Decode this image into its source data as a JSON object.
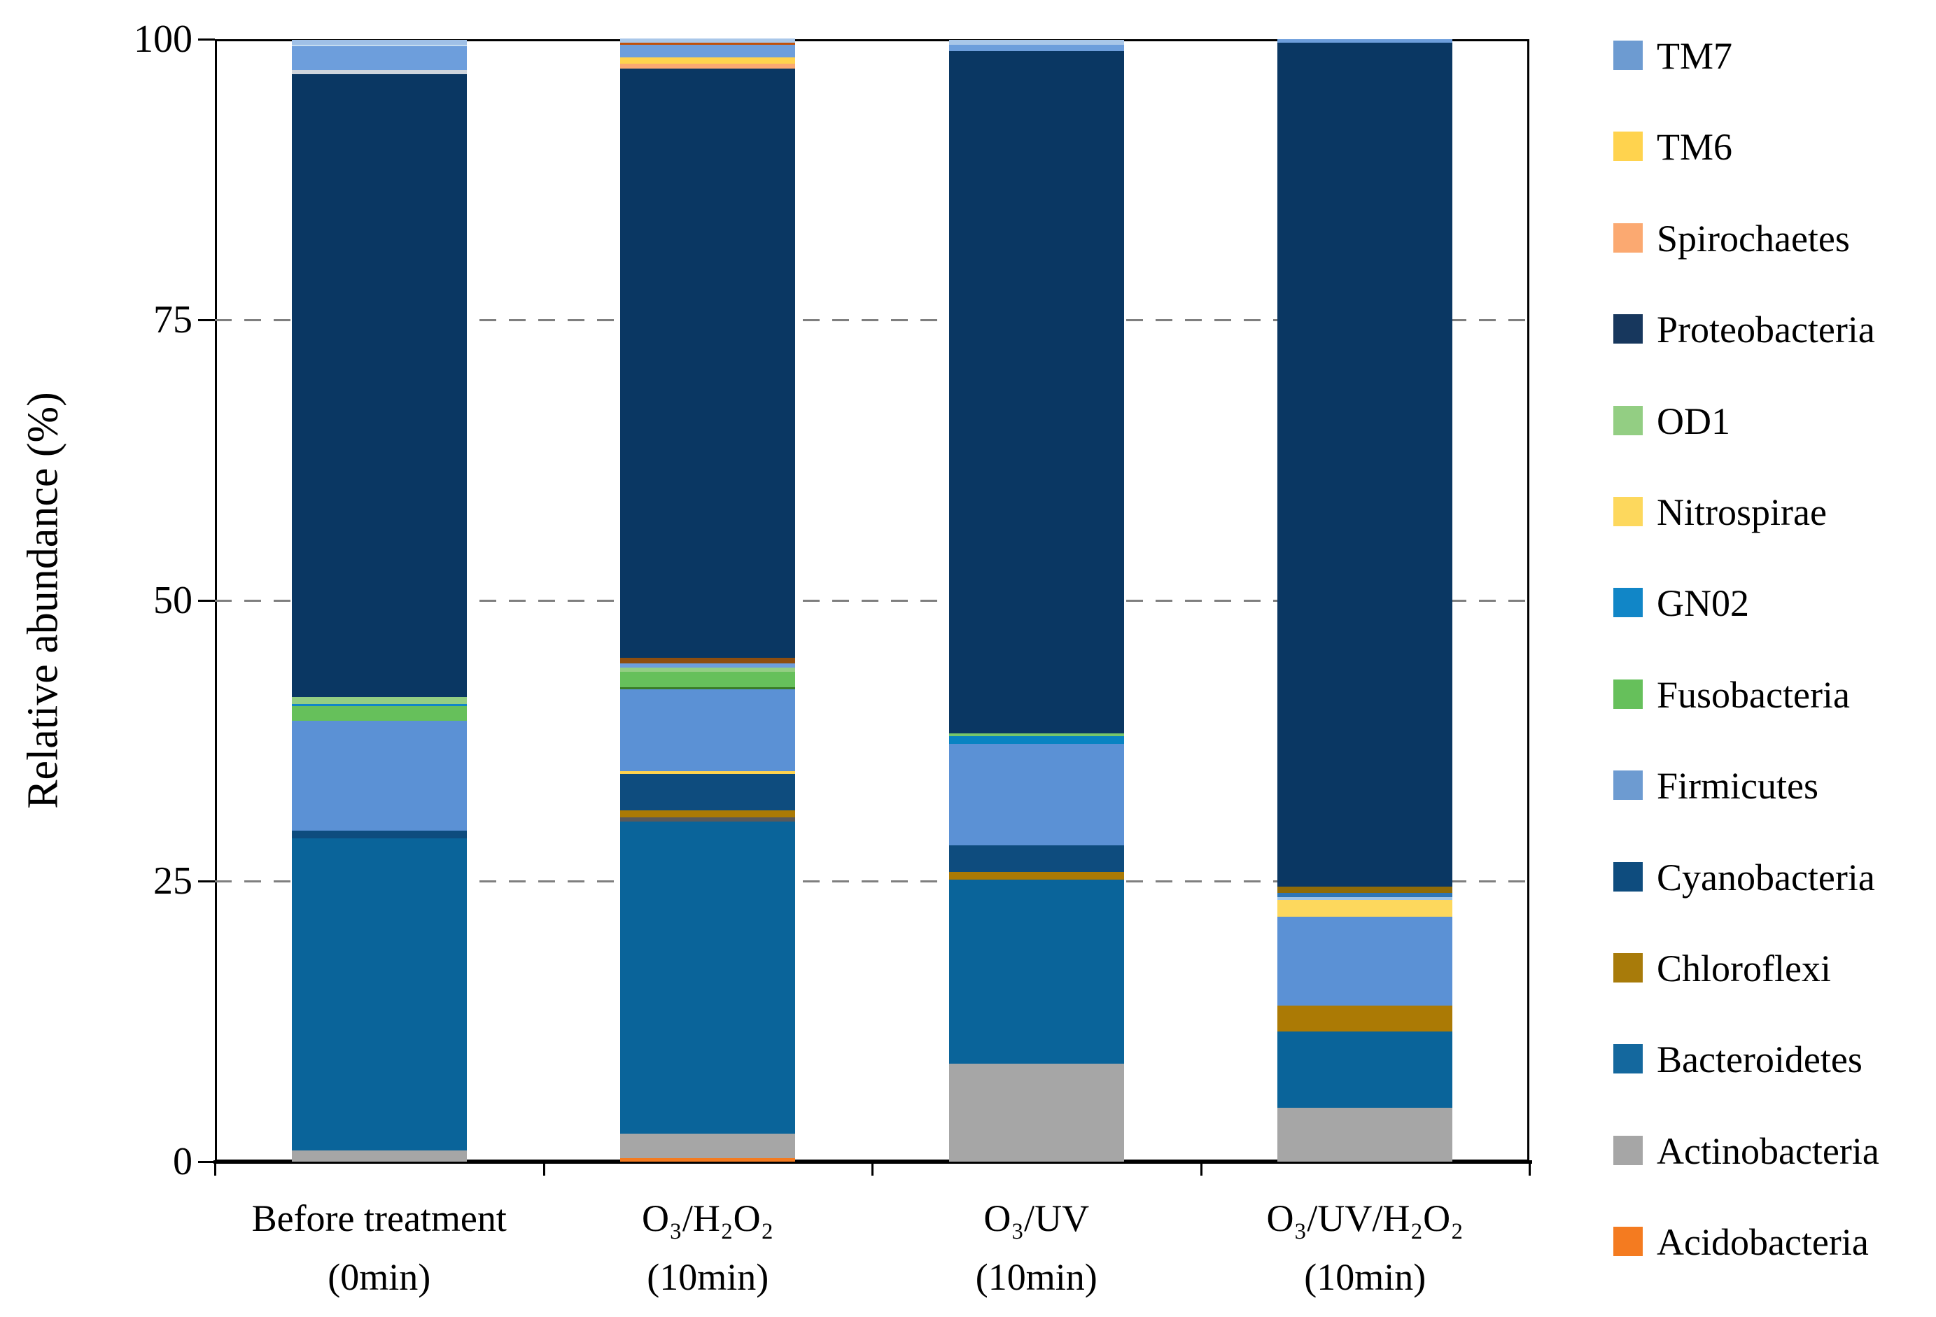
{
  "figure": {
    "background": "#FFFFFF"
  },
  "chart_data": {
    "type": "bar",
    "stacked": true,
    "title": "",
    "xlabel": "",
    "ylabel": "Relative abundance (%)",
    "ylim": [
      0,
      100
    ],
    "yticks": [
      0,
      25,
      50,
      75,
      100
    ],
    "gridlines": {
      "style": "dashed",
      "color": "#7F7F7F",
      "at": [
        25,
        50,
        75
      ]
    },
    "legend_position": "right",
    "categories": [
      {
        "line1": "Before treatment",
        "line2": "(0min)"
      },
      {
        "line1": "O₃/H₂O₂",
        "line2": "(10min)"
      },
      {
        "line1": "O₃/UV",
        "line2": "(10min)"
      },
      {
        "line1": "O₃/UV/H₂O₂",
        "line2": "(10min)"
      }
    ],
    "legend": [
      {
        "label": "TM7",
        "color": "#6D9BD1"
      },
      {
        "label": "TM6",
        "color": "#FFD34E"
      },
      {
        "label": "Spirochaetes",
        "color": "#FBA971"
      },
      {
        "label": "Proteobacteria",
        "color": "#17375D"
      },
      {
        "label": "OD1",
        "color": "#93CE83"
      },
      {
        "label": "Nitrospirae",
        "color": "#FDD85D"
      },
      {
        "label": "GN02",
        "color": "#1186C7"
      },
      {
        "label": "Fusobacteria",
        "color": "#66C05B"
      },
      {
        "label": "Firmicutes",
        "color": "#6D9BD1"
      },
      {
        "label": "Cyanobacteria",
        "color": "#0E4C7E"
      },
      {
        "label": "Chloroflexi",
        "color": "#A87B0A"
      },
      {
        "label": "Bacteroidetes",
        "color": "#14689E"
      },
      {
        "label": "Actinobacteria",
        "color": "#A6A6A6"
      },
      {
        "label": "Acidobacteria",
        "color": "#F47B20"
      }
    ],
    "series": [
      {
        "name": "TM7",
        "values": [
          2.7,
          1.5,
          1.0,
          0.3
        ]
      },
      {
        "name": "TM6",
        "values": [
          0.15,
          0.56,
          0,
          0
        ]
      },
      {
        "name": "Spirochaetes",
        "values": [
          0.2,
          0.44,
          0,
          0
        ]
      },
      {
        "name": "Proteobacteria",
        "values": [
          55.5,
          52.5,
          60.8,
          75.2
        ]
      },
      {
        "name": "OD1",
        "values": [
          0.6,
          0.38,
          0,
          0
        ]
      },
      {
        "name": "Nitrospirae",
        "values": [
          0,
          0.27,
          0,
          1.5
        ]
      },
      {
        "name": "GN02",
        "values": [
          0.2,
          0,
          0.7,
          0
        ]
      },
      {
        "name": "Fusobacteria",
        "values": [
          1.3,
          1.55,
          0.25,
          0
        ]
      },
      {
        "name": "Firmicutes",
        "values": [
          9.8,
          7.3,
          9.0,
          7.9
        ]
      },
      {
        "name": "Cyanobacteria",
        "values": [
          0.7,
          3.2,
          2.4,
          0
        ]
      },
      {
        "name": "Chloroflexi",
        "values": [
          0,
          0.65,
          0.7,
          2.3
        ]
      },
      {
        "name": "Bacteroidetes",
        "values": [
          27.8,
          27.8,
          16.4,
          6.8
        ]
      },
      {
        "name": "Actinobacteria",
        "values": [
          1.0,
          2.2,
          8.7,
          4.8
        ]
      },
      {
        "name": "Acidobacteria",
        "values": [
          0,
          0.3,
          0,
          0
        ]
      }
    ],
    "bars": [
      {
        "category": "Before treatment (0min)",
        "segments": [
          {
            "phylum": "Actinobacteria",
            "color": "#A6A6A6",
            "value": 1.0
          },
          {
            "phylum": "Bacteroidetes",
            "color": "#0A649A",
            "value": 27.8
          },
          {
            "phylum": "Cyanobacteria",
            "color": "#0E4C7E",
            "value": 0.7
          },
          {
            "phylum": "Firmicutes",
            "color": "#5B91D5",
            "value": 9.8
          },
          {
            "phylum": "Fusobacteria",
            "color": "#66C05B",
            "value": 1.3
          },
          {
            "phylum": "GN02",
            "color": "#1186C7",
            "value": 0.2
          },
          {
            "phylum": "OD1",
            "color": "#93CE83",
            "value": 0.6
          },
          {
            "phylum": "Proteobacteria",
            "color": "#0A3763",
            "value": 55.5
          },
          {
            "phylum": "TM6/Spirochaetes trace",
            "color": "#CFD5DD",
            "value": 0.35
          },
          {
            "phylum": "TM7",
            "color": "#6D9EDC",
            "value": 2.1
          },
          {
            "phylum": "unlabeled light sliver",
            "color": "#C5DCF0",
            "value": 0.15
          },
          {
            "phylum": "unlabeled pale sliver",
            "color": "#9FC0E7",
            "value": 0.45
          }
        ]
      },
      {
        "category": "O₃/H₂O₂ (10min)",
        "segments": [
          {
            "phylum": "Acidobacteria",
            "color": "#F47B20",
            "value": 0.3
          },
          {
            "phylum": "Actinobacteria",
            "color": "#A6A6A6",
            "value": 2.2
          },
          {
            "phylum": "Bacteroidetes",
            "color": "#0A649A",
            "value": 27.8
          },
          {
            "phylum": "unlabeled dark-gray sliver",
            "color": "#58595B",
            "value": 0.37
          },
          {
            "phylum": "Chloroflexi",
            "color": "#AB7A05",
            "value": 0.65
          },
          {
            "phylum": "Cyanobacteria",
            "color": "#0E4C7E",
            "value": 3.2
          },
          {
            "phylum": "Nitrospirae",
            "color": "#FFD34E",
            "value": 0.27
          },
          {
            "phylum": "Firmicutes",
            "color": "#5B91D5",
            "value": 7.3
          },
          {
            "phylum": "Fusobacteria edge",
            "color": "#3A7D28",
            "value": 0.17
          },
          {
            "phylum": "Fusobacteria",
            "color": "#66C05B",
            "value": 1.4
          },
          {
            "phylum": "OD1",
            "color": "#93CE83",
            "value": 0.38
          },
          {
            "phylum": "unlabeled blue sliver",
            "color": "#6D9EDC",
            "value": 0.35
          },
          {
            "phylum": "unlabeled rust band",
            "color": "#8E4E10",
            "value": 0.5
          },
          {
            "phylum": "Proteobacteria",
            "color": "#0A3763",
            "value": 52.5
          },
          {
            "phylum": "Spirochaetes",
            "color": "#FBA971",
            "value": 0.44
          },
          {
            "phylum": "TM6",
            "color": "#FFD34E",
            "value": 0.56
          },
          {
            "phylum": "TM7",
            "color": "#6D9EDC",
            "value": 1.12
          },
          {
            "phylum": "unlabeled rust sliver",
            "color": "#C0500B",
            "value": 0.2
          },
          {
            "phylum": "unlabeled pale sliver",
            "color": "#A9C7E9",
            "value": 0.35
          }
        ]
      },
      {
        "category": "O₃/UV (10min)",
        "segments": [
          {
            "phylum": "Actinobacteria",
            "color": "#A6A6A6",
            "value": 8.7
          },
          {
            "phylum": "Bacteroidetes",
            "color": "#0A649A",
            "value": 16.4
          },
          {
            "phylum": "Chloroflexi",
            "color": "#AB7A05",
            "value": 0.7
          },
          {
            "phylum": "Cyanobacteria",
            "color": "#0E4C7E",
            "value": 2.4
          },
          {
            "phylum": "Firmicutes",
            "color": "#5B91D5",
            "value": 9.0
          },
          {
            "phylum": "GN02",
            "color": "#0883C2",
            "value": 0.7
          },
          {
            "phylum": "Fusobacteria",
            "color": "#77C66A",
            "value": 0.25
          },
          {
            "phylum": "Proteobacteria",
            "color": "#0A3763",
            "value": 60.8
          },
          {
            "phylum": "TM7",
            "color": "#6D9EDC",
            "value": 0.56
          },
          {
            "phylum": "unlabeled pale sliver",
            "color": "#A9C7E9",
            "value": 0.42
          }
        ]
      },
      {
        "category": "O₃/UV/H₂O₂ (10min)",
        "segments": [
          {
            "phylum": "Actinobacteria",
            "color": "#A6A6A6",
            "value": 4.8
          },
          {
            "phylum": "Bacteroidetes",
            "color": "#0A649A",
            "value": 6.8
          },
          {
            "phylum": "Chloroflexi",
            "color": "#AB7A05",
            "value": 2.3
          },
          {
            "phylum": "Firmicutes",
            "color": "#5B91D5",
            "value": 7.9
          },
          {
            "phylum": "Nitrospirae",
            "color": "#FDD85D",
            "value": 1.5
          },
          {
            "phylum": "unlabeled pale sliver",
            "color": "#9DC3E6",
            "value": 0.25
          },
          {
            "phylum": "unlabeled steel sliver",
            "color": "#2E75B6",
            "value": 0.37
          },
          {
            "phylum": "unlabeled gold band",
            "color": "#8F6B08",
            "value": 0.58
          },
          {
            "phylum": "Proteobacteria",
            "color": "#0A3763",
            "value": 75.2
          },
          {
            "phylum": "TM7",
            "color": "#6D9EDC",
            "value": 0.3
          }
        ]
      }
    ]
  }
}
